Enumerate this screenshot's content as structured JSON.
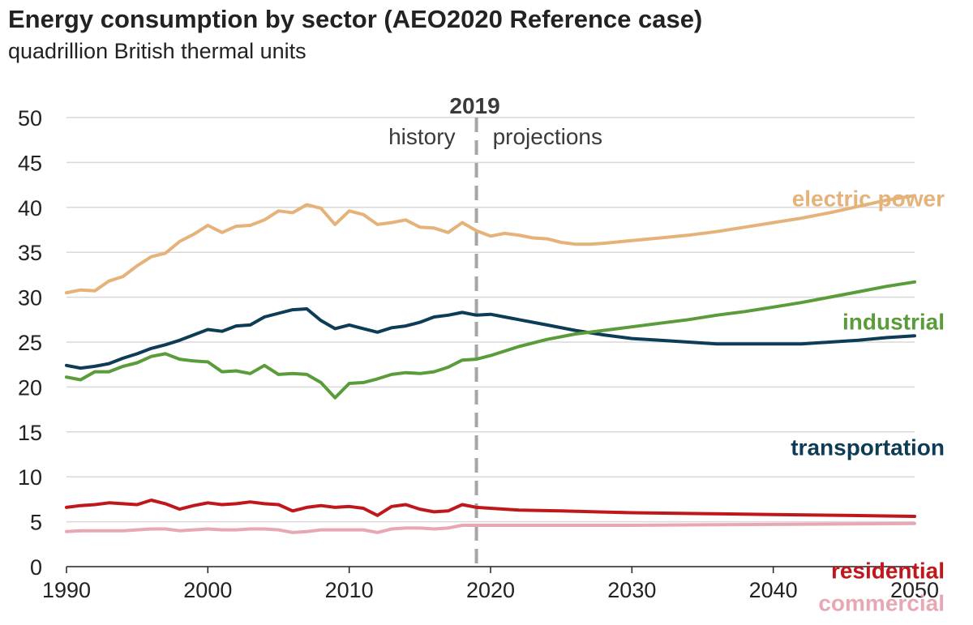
{
  "header": {
    "title": "Energy consumption by sector (AEO2020 Reference case)",
    "subtitle": "quadrillion British thermal units"
  },
  "chart_data": {
    "type": "line",
    "title": "Energy consumption by sector (AEO2020 Reference case)",
    "ylabel": "quadrillion British thermal units",
    "xlabel": "",
    "xlim": [
      1990,
      2050
    ],
    "ylim": [
      0,
      50
    ],
    "x_ticks": [
      1990,
      2000,
      2010,
      2020,
      2030,
      2040,
      2050
    ],
    "y_ticks": [
      0,
      5,
      10,
      15,
      20,
      25,
      30,
      35,
      40,
      45,
      50
    ],
    "grid": "horizontal",
    "legend": "series labels at right end",
    "annotations": {
      "divider_year": 2019,
      "divider_label": "2019",
      "left_label": "history",
      "right_label": "projections"
    },
    "series": [
      {
        "name": "electric power",
        "color": "#e5b27a",
        "points": [
          [
            1990,
            30.5
          ],
          [
            1991,
            30.8
          ],
          [
            1992,
            30.7
          ],
          [
            1993,
            31.8
          ],
          [
            1994,
            32.3
          ],
          [
            1995,
            33.5
          ],
          [
            1996,
            34.5
          ],
          [
            1997,
            34.9
          ],
          [
            1998,
            36.2
          ],
          [
            1999,
            37.0
          ],
          [
            2000,
            38.0
          ],
          [
            2001,
            37.2
          ],
          [
            2002,
            37.9
          ],
          [
            2003,
            38.0
          ],
          [
            2004,
            38.6
          ],
          [
            2005,
            39.6
          ],
          [
            2006,
            39.4
          ],
          [
            2007,
            40.3
          ],
          [
            2008,
            39.9
          ],
          [
            2009,
            38.1
          ],
          [
            2010,
            39.6
          ],
          [
            2011,
            39.2
          ],
          [
            2012,
            38.1
          ],
          [
            2013,
            38.3
          ],
          [
            2014,
            38.6
          ],
          [
            2015,
            37.8
          ],
          [
            2016,
            37.7
          ],
          [
            2017,
            37.2
          ],
          [
            2018,
            38.3
          ],
          [
            2019,
            37.4
          ],
          [
            2020,
            36.8
          ],
          [
            2021,
            37.1
          ],
          [
            2022,
            36.9
          ],
          [
            2023,
            36.6
          ],
          [
            2024,
            36.5
          ],
          [
            2025,
            36.1
          ],
          [
            2026,
            35.9
          ],
          [
            2027,
            35.9
          ],
          [
            2028,
            36.0
          ],
          [
            2030,
            36.3
          ],
          [
            2032,
            36.6
          ],
          [
            2034,
            36.9
          ],
          [
            2036,
            37.3
          ],
          [
            2038,
            37.8
          ],
          [
            2040,
            38.3
          ],
          [
            2042,
            38.8
          ],
          [
            2044,
            39.4
          ],
          [
            2046,
            40.1
          ],
          [
            2048,
            40.8
          ],
          [
            2050,
            41.3
          ]
        ]
      },
      {
        "name": "industrial",
        "color": "#5a9b3a",
        "points": [
          [
            1990,
            21.1
          ],
          [
            1991,
            20.8
          ],
          [
            1992,
            21.7
          ],
          [
            1993,
            21.7
          ],
          [
            1994,
            22.3
          ],
          [
            1995,
            22.7
          ],
          [
            1996,
            23.4
          ],
          [
            1997,
            23.7
          ],
          [
            1998,
            23.1
          ],
          [
            1999,
            22.9
          ],
          [
            2000,
            22.8
          ],
          [
            2001,
            21.7
          ],
          [
            2002,
            21.8
          ],
          [
            2003,
            21.5
          ],
          [
            2004,
            22.4
          ],
          [
            2005,
            21.4
          ],
          [
            2006,
            21.5
          ],
          [
            2007,
            21.4
          ],
          [
            2008,
            20.5
          ],
          [
            2009,
            18.8
          ],
          [
            2010,
            20.4
          ],
          [
            2011,
            20.5
          ],
          [
            2012,
            20.9
          ],
          [
            2013,
            21.4
          ],
          [
            2014,
            21.6
          ],
          [
            2015,
            21.5
          ],
          [
            2016,
            21.7
          ],
          [
            2017,
            22.2
          ],
          [
            2018,
            23.0
          ],
          [
            2019,
            23.1
          ],
          [
            2020,
            23.5
          ],
          [
            2022,
            24.5
          ],
          [
            2024,
            25.3
          ],
          [
            2026,
            25.9
          ],
          [
            2028,
            26.3
          ],
          [
            2030,
            26.7
          ],
          [
            2032,
            27.1
          ],
          [
            2034,
            27.5
          ],
          [
            2036,
            28.0
          ],
          [
            2038,
            28.4
          ],
          [
            2040,
            28.9
          ],
          [
            2042,
            29.4
          ],
          [
            2044,
            30.0
          ],
          [
            2046,
            30.6
          ],
          [
            2048,
            31.2
          ],
          [
            2050,
            31.7
          ]
        ]
      },
      {
        "name": "transportation",
        "color": "#0e3b55",
        "points": [
          [
            1990,
            22.4
          ],
          [
            1991,
            22.1
          ],
          [
            1992,
            22.3
          ],
          [
            1993,
            22.6
          ],
          [
            1994,
            23.2
          ],
          [
            1995,
            23.7
          ],
          [
            1996,
            24.3
          ],
          [
            1997,
            24.7
          ],
          [
            1998,
            25.2
          ],
          [
            1999,
            25.8
          ],
          [
            2000,
            26.4
          ],
          [
            2001,
            26.2
          ],
          [
            2002,
            26.8
          ],
          [
            2003,
            26.9
          ],
          [
            2004,
            27.8
          ],
          [
            2005,
            28.2
          ],
          [
            2006,
            28.6
          ],
          [
            2007,
            28.7
          ],
          [
            2008,
            27.4
          ],
          [
            2009,
            26.5
          ],
          [
            2010,
            26.9
          ],
          [
            2011,
            26.5
          ],
          [
            2012,
            26.1
          ],
          [
            2013,
            26.6
          ],
          [
            2014,
            26.8
          ],
          [
            2015,
            27.2
          ],
          [
            2016,
            27.8
          ],
          [
            2017,
            28.0
          ],
          [
            2018,
            28.3
          ],
          [
            2019,
            28.0
          ],
          [
            2020,
            28.1
          ],
          [
            2021,
            27.8
          ],
          [
            2022,
            27.5
          ],
          [
            2024,
            26.9
          ],
          [
            2026,
            26.3
          ],
          [
            2028,
            25.8
          ],
          [
            2030,
            25.4
          ],
          [
            2032,
            25.2
          ],
          [
            2034,
            25.0
          ],
          [
            2036,
            24.8
          ],
          [
            2038,
            24.8
          ],
          [
            2040,
            24.8
          ],
          [
            2042,
            24.8
          ],
          [
            2044,
            25.0
          ],
          [
            2046,
            25.2
          ],
          [
            2048,
            25.5
          ],
          [
            2050,
            25.7
          ]
        ]
      },
      {
        "name": "residential",
        "color": "#c0171c",
        "points": [
          [
            1990,
            6.6
          ],
          [
            1991,
            6.8
          ],
          [
            1992,
            6.9
          ],
          [
            1993,
            7.1
          ],
          [
            1994,
            7.0
          ],
          [
            1995,
            6.9
          ],
          [
            1996,
            7.4
          ],
          [
            1997,
            7.0
          ],
          [
            1998,
            6.4
          ],
          [
            1999,
            6.8
          ],
          [
            2000,
            7.1
          ],
          [
            2001,
            6.9
          ],
          [
            2002,
            7.0
          ],
          [
            2003,
            7.2
          ],
          [
            2004,
            7.0
          ],
          [
            2005,
            6.9
          ],
          [
            2006,
            6.2
          ],
          [
            2007,
            6.6
          ],
          [
            2008,
            6.8
          ],
          [
            2009,
            6.6
          ],
          [
            2010,
            6.7
          ],
          [
            2011,
            6.5
          ],
          [
            2012,
            5.7
          ],
          [
            2013,
            6.7
          ],
          [
            2014,
            6.9
          ],
          [
            2015,
            6.4
          ],
          [
            2016,
            6.1
          ],
          [
            2017,
            6.2
          ],
          [
            2018,
            6.9
          ],
          [
            2019,
            6.6
          ],
          [
            2020,
            6.5
          ],
          [
            2022,
            6.3
          ],
          [
            2025,
            6.2
          ],
          [
            2030,
            6.0
          ],
          [
            2035,
            5.9
          ],
          [
            2040,
            5.8
          ],
          [
            2045,
            5.7
          ],
          [
            2050,
            5.6
          ]
        ]
      },
      {
        "name": "commercial",
        "color": "#e7a8b4",
        "points": [
          [
            1990,
            3.9
          ],
          [
            1991,
            4.0
          ],
          [
            1992,
            4.0
          ],
          [
            1993,
            4.0
          ],
          [
            1994,
            4.0
          ],
          [
            1995,
            4.1
          ],
          [
            1996,
            4.2
          ],
          [
            1997,
            4.2
          ],
          [
            1998,
            4.0
          ],
          [
            1999,
            4.1
          ],
          [
            2000,
            4.2
          ],
          [
            2001,
            4.1
          ],
          [
            2002,
            4.1
          ],
          [
            2003,
            4.2
          ],
          [
            2004,
            4.2
          ],
          [
            2005,
            4.1
          ],
          [
            2006,
            3.8
          ],
          [
            2007,
            3.9
          ],
          [
            2008,
            4.1
          ],
          [
            2009,
            4.1
          ],
          [
            2010,
            4.1
          ],
          [
            2011,
            4.1
          ],
          [
            2012,
            3.8
          ],
          [
            2013,
            4.2
          ],
          [
            2014,
            4.3
          ],
          [
            2015,
            4.3
          ],
          [
            2016,
            4.2
          ],
          [
            2017,
            4.3
          ],
          [
            2018,
            4.6
          ],
          [
            2019,
            4.6
          ],
          [
            2025,
            4.6
          ],
          [
            2030,
            4.6
          ],
          [
            2040,
            4.7
          ],
          [
            2050,
            4.8
          ]
        ]
      }
    ]
  }
}
